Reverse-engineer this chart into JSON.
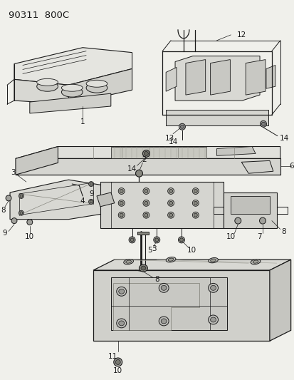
{
  "title": "90311  800C",
  "bg_color": "#f0f0eb",
  "line_color": "#1a1a1a",
  "label_fontsize": 7.5,
  "figsize": [
    4.14,
    5.33
  ],
  "dpi": 100
}
